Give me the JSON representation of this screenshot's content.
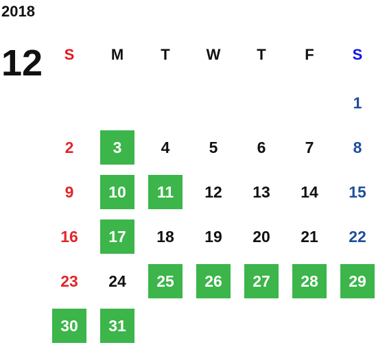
{
  "year": "2018",
  "month": "12",
  "weekdays": [
    "S",
    "M",
    "T",
    "W",
    "T",
    "F",
    "S"
  ],
  "weeks": [
    {
      "days": [
        null,
        null,
        null,
        null,
        null,
        null,
        1
      ],
      "highlight": [
        false,
        false,
        false,
        false,
        false,
        false,
        false
      ]
    },
    {
      "days": [
        2,
        3,
        4,
        5,
        6,
        7,
        8
      ],
      "highlight": [
        false,
        true,
        false,
        false,
        false,
        false,
        false
      ]
    },
    {
      "days": [
        9,
        10,
        11,
        12,
        13,
        14,
        15
      ],
      "highlight": [
        false,
        true,
        true,
        false,
        false,
        false,
        false
      ]
    },
    {
      "days": [
        16,
        17,
        18,
        19,
        20,
        21,
        22
      ],
      "highlight": [
        false,
        true,
        false,
        false,
        false,
        false,
        false
      ]
    },
    {
      "days": [
        23,
        24,
        25,
        26,
        27,
        28,
        29
      ],
      "highlight": [
        false,
        false,
        true,
        true,
        true,
        true,
        true
      ]
    },
    {
      "days": [
        30,
        31,
        null,
        null,
        null,
        null,
        null
      ],
      "highlight": [
        true,
        true,
        false,
        false,
        false,
        false,
        false
      ]
    }
  ]
}
